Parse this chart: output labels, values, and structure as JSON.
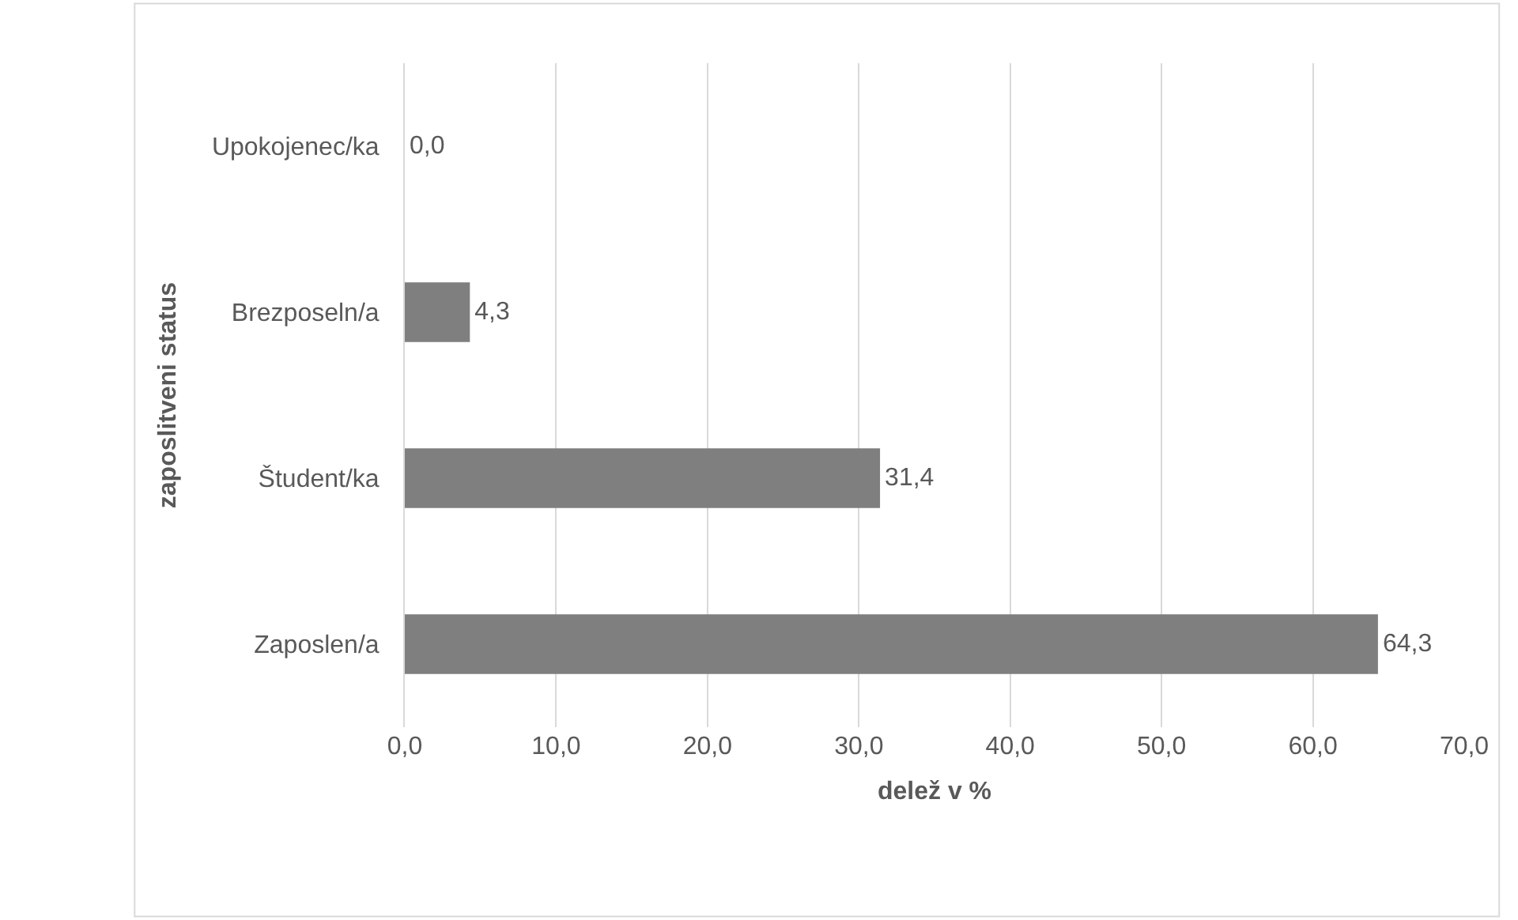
{
  "chart_data": {
    "type": "bar",
    "orientation": "horizontal",
    "categories": [
      "Upokojenec/ka",
      "Brezposeln/a",
      "Študent/ka",
      "Zaposlen/a"
    ],
    "values": [
      0.0,
      4.3,
      31.4,
      64.3
    ],
    "value_labels": [
      "0,0",
      "4,3",
      "31,4",
      "64,3"
    ],
    "color": "#7f7f7f",
    "xlabel": "delež v %",
    "ylabel": "zaposlitveni status",
    "xlim": [
      0,
      70
    ],
    "xticks": [
      {
        "value": 0,
        "label": "0,0"
      },
      {
        "value": 10,
        "label": "10,0"
      },
      {
        "value": 20,
        "label": "20,0"
      },
      {
        "value": 30,
        "label": "30,0"
      },
      {
        "value": 40,
        "label": "40,0"
      },
      {
        "value": 50,
        "label": "50,0"
      },
      {
        "value": 60,
        "label": "60,0"
      },
      {
        "value": 70,
        "label": "70,0"
      }
    ],
    "grid": "x",
    "legend": false
  }
}
